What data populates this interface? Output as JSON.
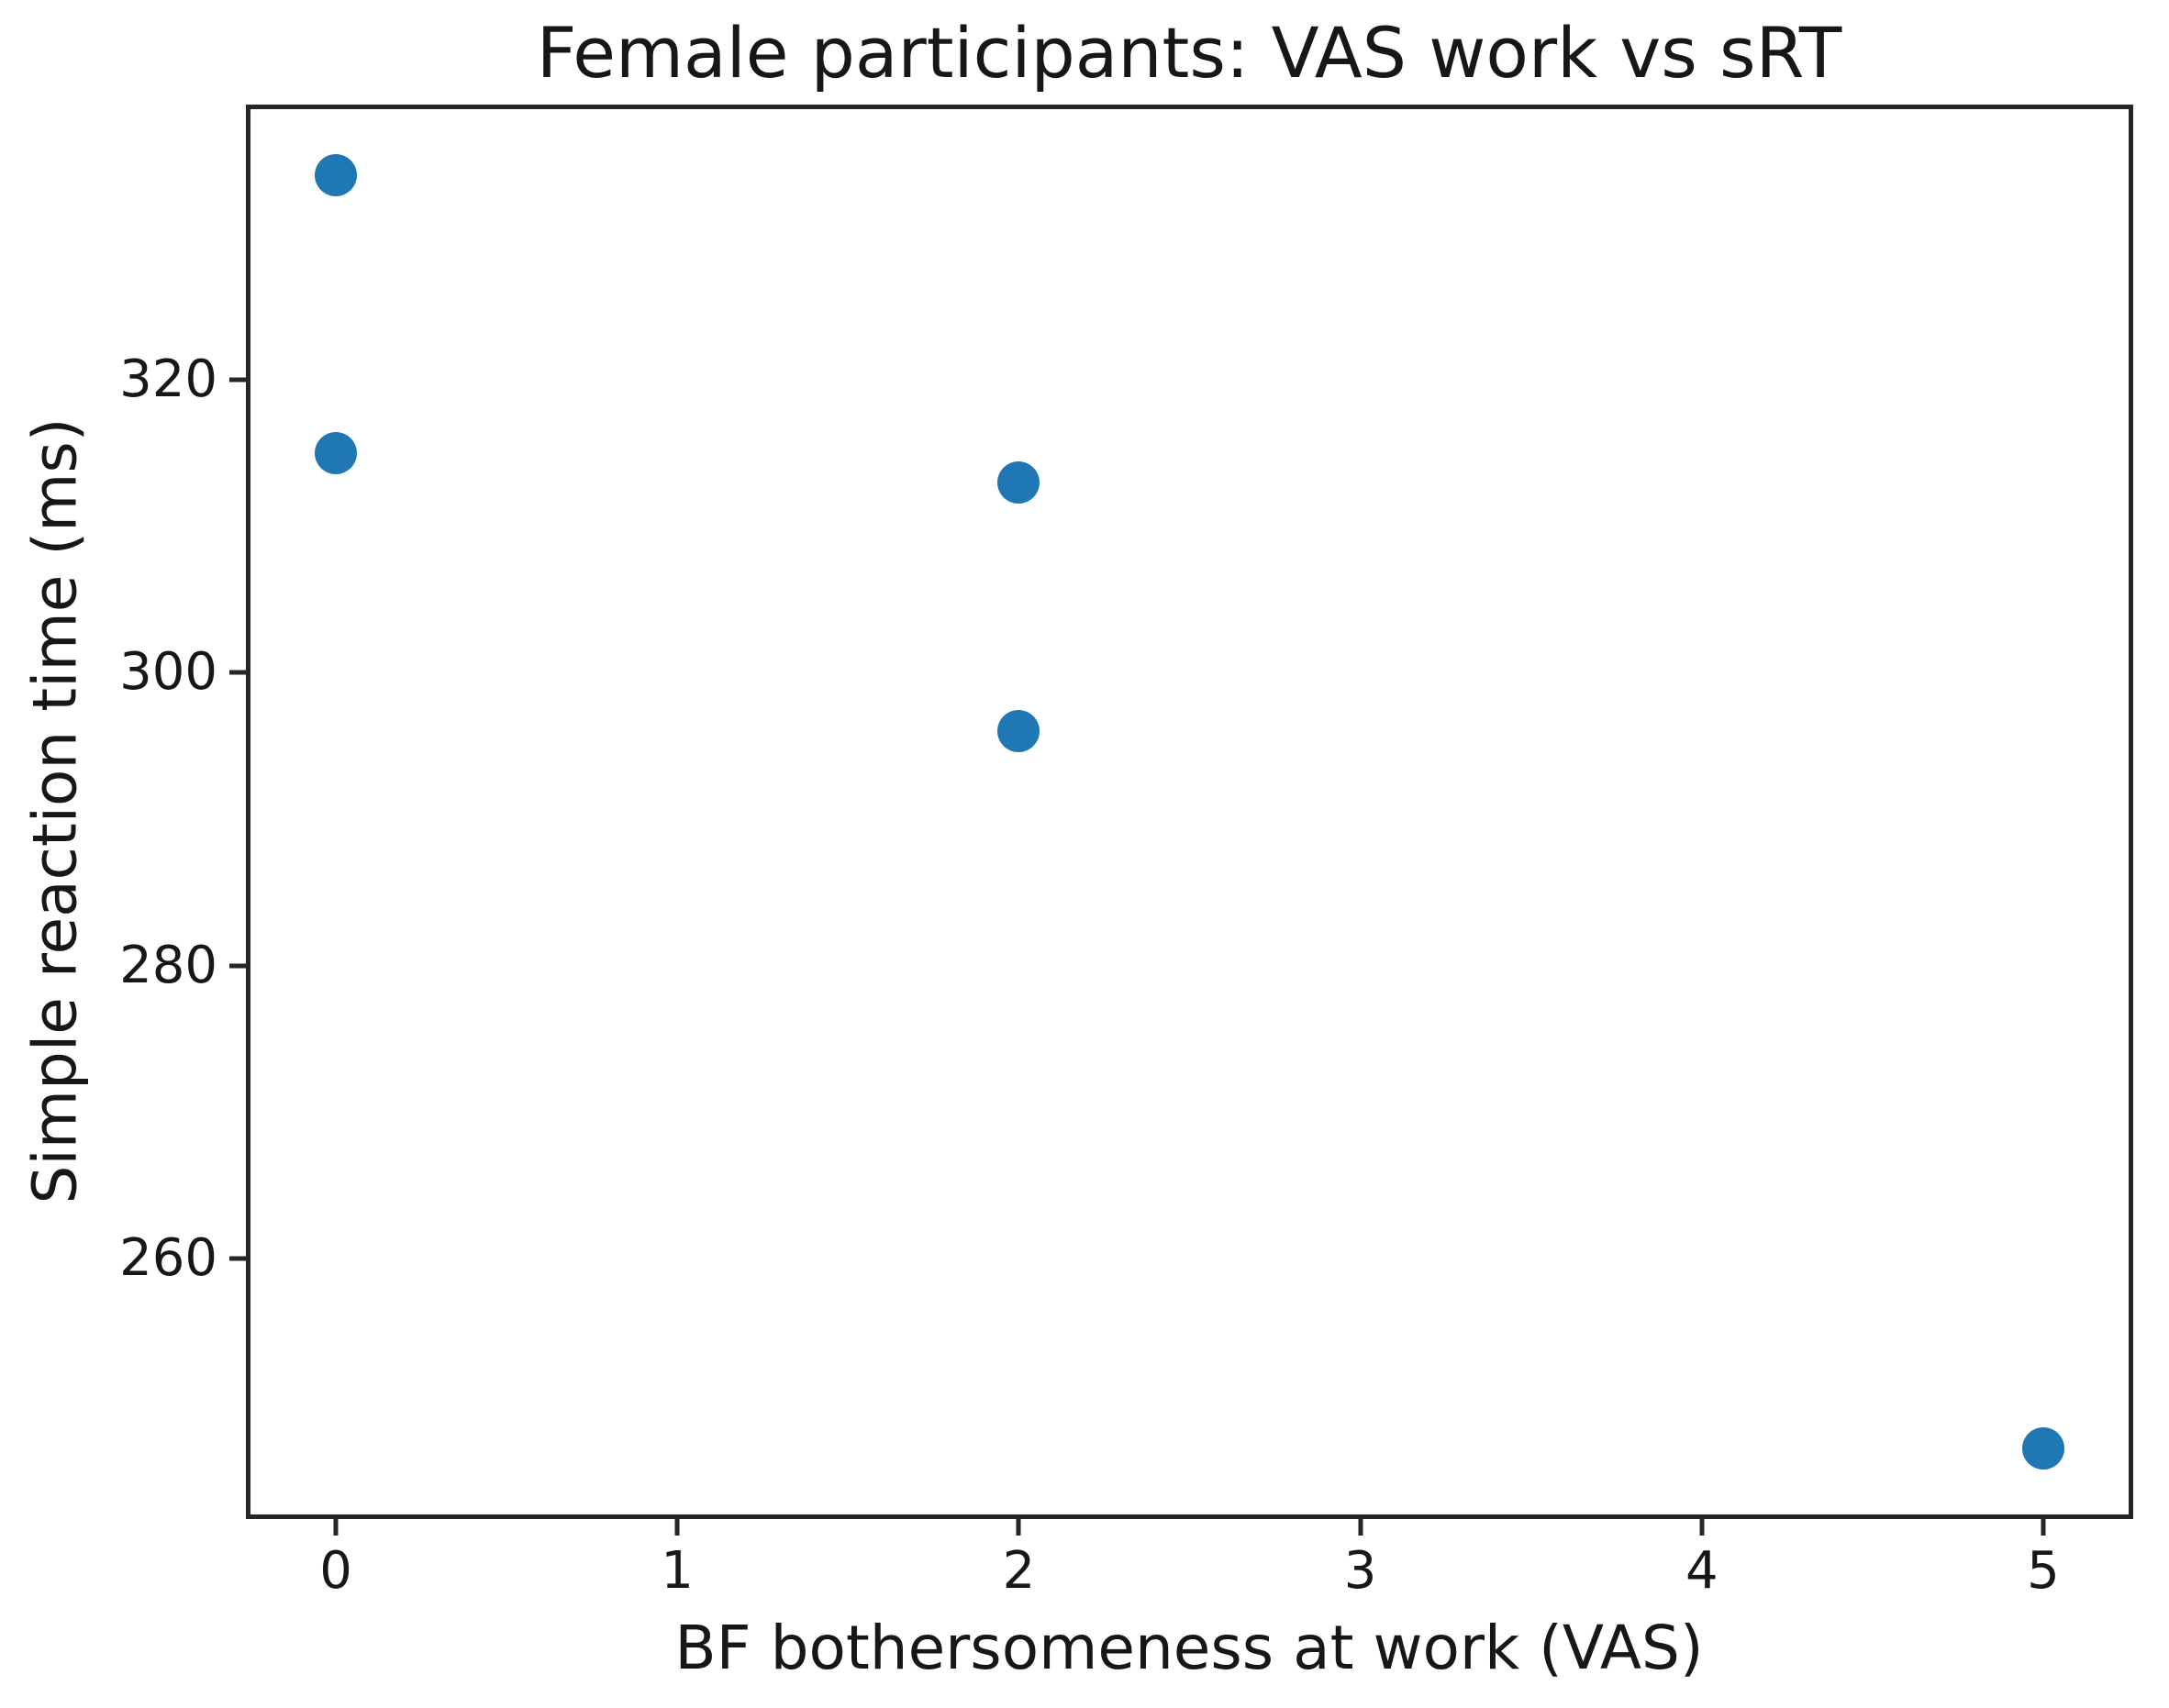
{
  "chart_data": {
    "type": "scatter",
    "title": "Female participants: VAS work vs sRT",
    "xlabel": "BF bothersomeness at work (VAS)",
    "ylabel": "Simple reaction time (ms)",
    "xlim": [
      -0.25,
      5.25
    ],
    "ylim": [
      242.5,
      338.5
    ],
    "xticks": [
      0,
      1,
      2,
      3,
      4,
      5
    ],
    "yticks": [
      260,
      280,
      300,
      320
    ],
    "grid": false,
    "legend_position": "none",
    "marker_color": "#1f77b4",
    "axis_color": "#262626",
    "points": [
      {
        "x": 0,
        "y": 334
      },
      {
        "x": 0,
        "y": 315
      },
      {
        "x": 2,
        "y": 313
      },
      {
        "x": 2,
        "y": 296
      },
      {
        "x": 5,
        "y": 247
      }
    ]
  }
}
